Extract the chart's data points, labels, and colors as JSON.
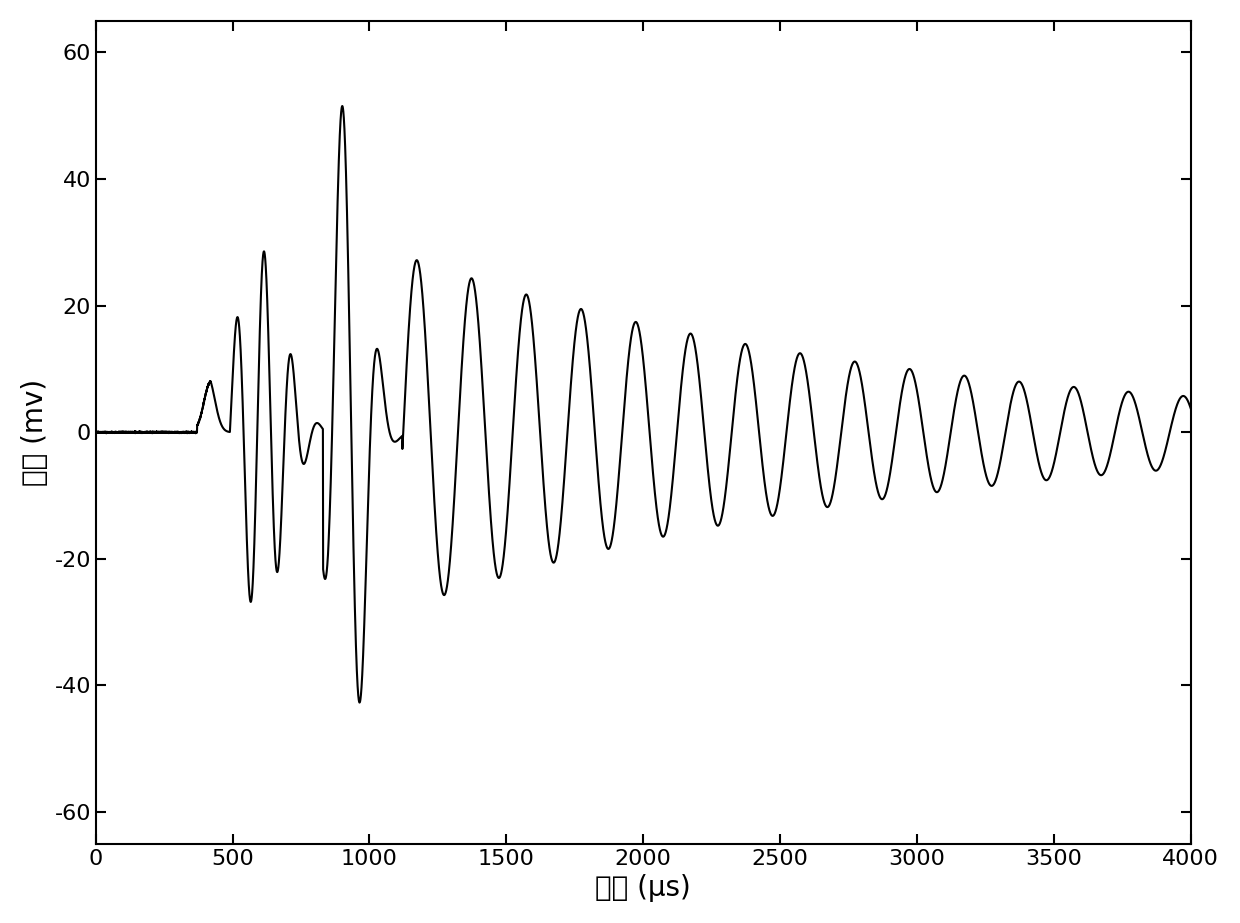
{
  "xlabel": "时间 (μs)",
  "ylabel": "幅値 (mv)",
  "xlim": [
    0,
    4000
  ],
  "ylim": [
    -65,
    65
  ],
  "xticks": [
    0,
    500,
    1000,
    1500,
    2000,
    2500,
    3000,
    3500,
    4000
  ],
  "yticks": [
    -60,
    -40,
    -20,
    0,
    20,
    40,
    60
  ],
  "line_color": "#000000",
  "line_width": 1.5,
  "background_color": "#ffffff",
  "xlabel_fontsize": 20,
  "ylabel_fontsize": 20,
  "tick_fontsize": 16,
  "figsize": [
    12.4,
    9.23
  ],
  "dpi": 100
}
